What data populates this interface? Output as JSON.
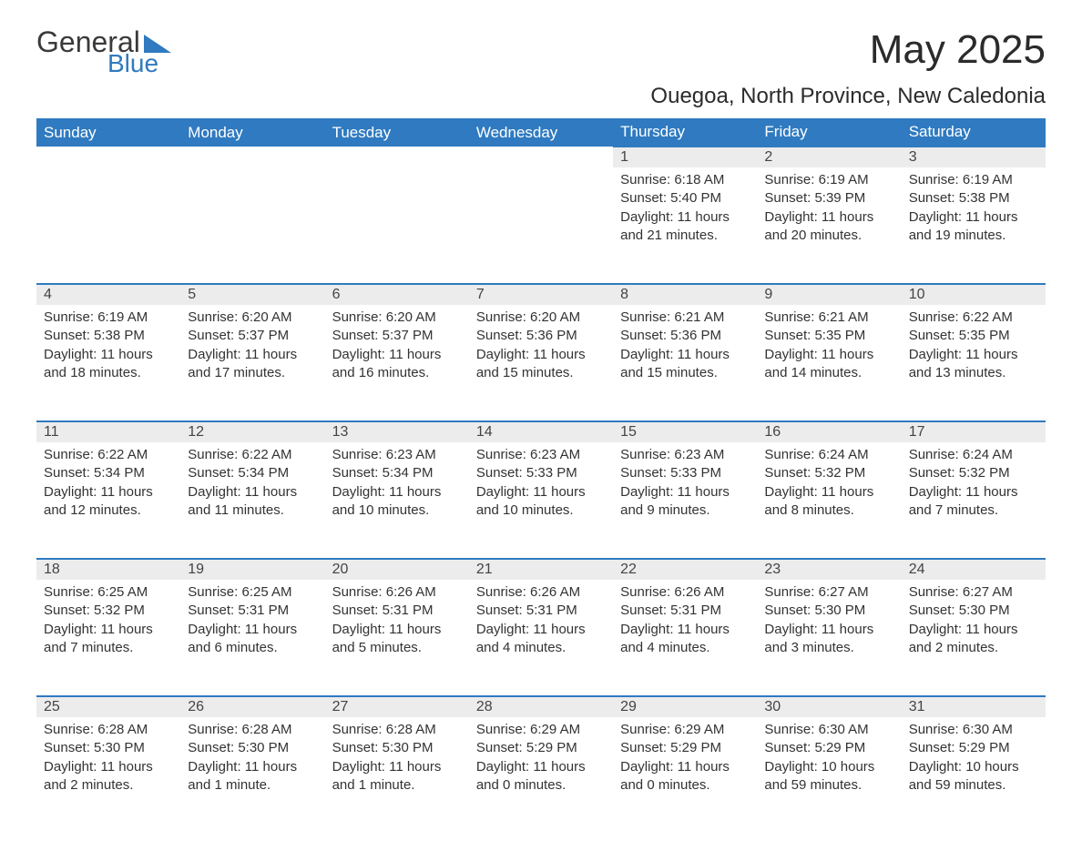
{
  "logo": {
    "general": "General",
    "blue": "Blue"
  },
  "title": "May 2025",
  "location": "Ouegoa, North Province, New Caledonia",
  "columns": [
    "Sunday",
    "Monday",
    "Tuesday",
    "Wednesday",
    "Thursday",
    "Friday",
    "Saturday"
  ],
  "labels": {
    "sunrise": "Sunrise:",
    "sunset": "Sunset:",
    "daylight": "Daylight:"
  },
  "colors": {
    "header_bg": "#2f7ac0",
    "header_text": "#ffffff",
    "daynum_bg": "#ececec",
    "border_top": "#2f7ac0",
    "text": "#333333",
    "background": "#ffffff"
  },
  "weeks": [
    [
      null,
      null,
      null,
      null,
      {
        "num": "1",
        "sunrise": "6:18 AM",
        "sunset": "5:40 PM",
        "daylight": "11 hours and 21 minutes."
      },
      {
        "num": "2",
        "sunrise": "6:19 AM",
        "sunset": "5:39 PM",
        "daylight": "11 hours and 20 minutes."
      },
      {
        "num": "3",
        "sunrise": "6:19 AM",
        "sunset": "5:38 PM",
        "daylight": "11 hours and 19 minutes."
      }
    ],
    [
      {
        "num": "4",
        "sunrise": "6:19 AM",
        "sunset": "5:38 PM",
        "daylight": "11 hours and 18 minutes."
      },
      {
        "num": "5",
        "sunrise": "6:20 AM",
        "sunset": "5:37 PM",
        "daylight": "11 hours and 17 minutes."
      },
      {
        "num": "6",
        "sunrise": "6:20 AM",
        "sunset": "5:37 PM",
        "daylight": "11 hours and 16 minutes."
      },
      {
        "num": "7",
        "sunrise": "6:20 AM",
        "sunset": "5:36 PM",
        "daylight": "11 hours and 15 minutes."
      },
      {
        "num": "8",
        "sunrise": "6:21 AM",
        "sunset": "5:36 PM",
        "daylight": "11 hours and 15 minutes."
      },
      {
        "num": "9",
        "sunrise": "6:21 AM",
        "sunset": "5:35 PM",
        "daylight": "11 hours and 14 minutes."
      },
      {
        "num": "10",
        "sunrise": "6:22 AM",
        "sunset": "5:35 PM",
        "daylight": "11 hours and 13 minutes."
      }
    ],
    [
      {
        "num": "11",
        "sunrise": "6:22 AM",
        "sunset": "5:34 PM",
        "daylight": "11 hours and 12 minutes."
      },
      {
        "num": "12",
        "sunrise": "6:22 AM",
        "sunset": "5:34 PM",
        "daylight": "11 hours and 11 minutes."
      },
      {
        "num": "13",
        "sunrise": "6:23 AM",
        "sunset": "5:34 PM",
        "daylight": "11 hours and 10 minutes."
      },
      {
        "num": "14",
        "sunrise": "6:23 AM",
        "sunset": "5:33 PM",
        "daylight": "11 hours and 10 minutes."
      },
      {
        "num": "15",
        "sunrise": "6:23 AM",
        "sunset": "5:33 PM",
        "daylight": "11 hours and 9 minutes."
      },
      {
        "num": "16",
        "sunrise": "6:24 AM",
        "sunset": "5:32 PM",
        "daylight": "11 hours and 8 minutes."
      },
      {
        "num": "17",
        "sunrise": "6:24 AM",
        "sunset": "5:32 PM",
        "daylight": "11 hours and 7 minutes."
      }
    ],
    [
      {
        "num": "18",
        "sunrise": "6:25 AM",
        "sunset": "5:32 PM",
        "daylight": "11 hours and 7 minutes."
      },
      {
        "num": "19",
        "sunrise": "6:25 AM",
        "sunset": "5:31 PM",
        "daylight": "11 hours and 6 minutes."
      },
      {
        "num": "20",
        "sunrise": "6:26 AM",
        "sunset": "5:31 PM",
        "daylight": "11 hours and 5 minutes."
      },
      {
        "num": "21",
        "sunrise": "6:26 AM",
        "sunset": "5:31 PM",
        "daylight": "11 hours and 4 minutes."
      },
      {
        "num": "22",
        "sunrise": "6:26 AM",
        "sunset": "5:31 PM",
        "daylight": "11 hours and 4 minutes."
      },
      {
        "num": "23",
        "sunrise": "6:27 AM",
        "sunset": "5:30 PM",
        "daylight": "11 hours and 3 minutes."
      },
      {
        "num": "24",
        "sunrise": "6:27 AM",
        "sunset": "5:30 PM",
        "daylight": "11 hours and 2 minutes."
      }
    ],
    [
      {
        "num": "25",
        "sunrise": "6:28 AM",
        "sunset": "5:30 PM",
        "daylight": "11 hours and 2 minutes."
      },
      {
        "num": "26",
        "sunrise": "6:28 AM",
        "sunset": "5:30 PM",
        "daylight": "11 hours and 1 minute."
      },
      {
        "num": "27",
        "sunrise": "6:28 AM",
        "sunset": "5:30 PM",
        "daylight": "11 hours and 1 minute."
      },
      {
        "num": "28",
        "sunrise": "6:29 AM",
        "sunset": "5:29 PM",
        "daylight": "11 hours and 0 minutes."
      },
      {
        "num": "29",
        "sunrise": "6:29 AM",
        "sunset": "5:29 PM",
        "daylight": "11 hours and 0 minutes."
      },
      {
        "num": "30",
        "sunrise": "6:30 AM",
        "sunset": "5:29 PM",
        "daylight": "10 hours and 59 minutes."
      },
      {
        "num": "31",
        "sunrise": "6:30 AM",
        "sunset": "5:29 PM",
        "daylight": "10 hours and 59 minutes."
      }
    ]
  ]
}
